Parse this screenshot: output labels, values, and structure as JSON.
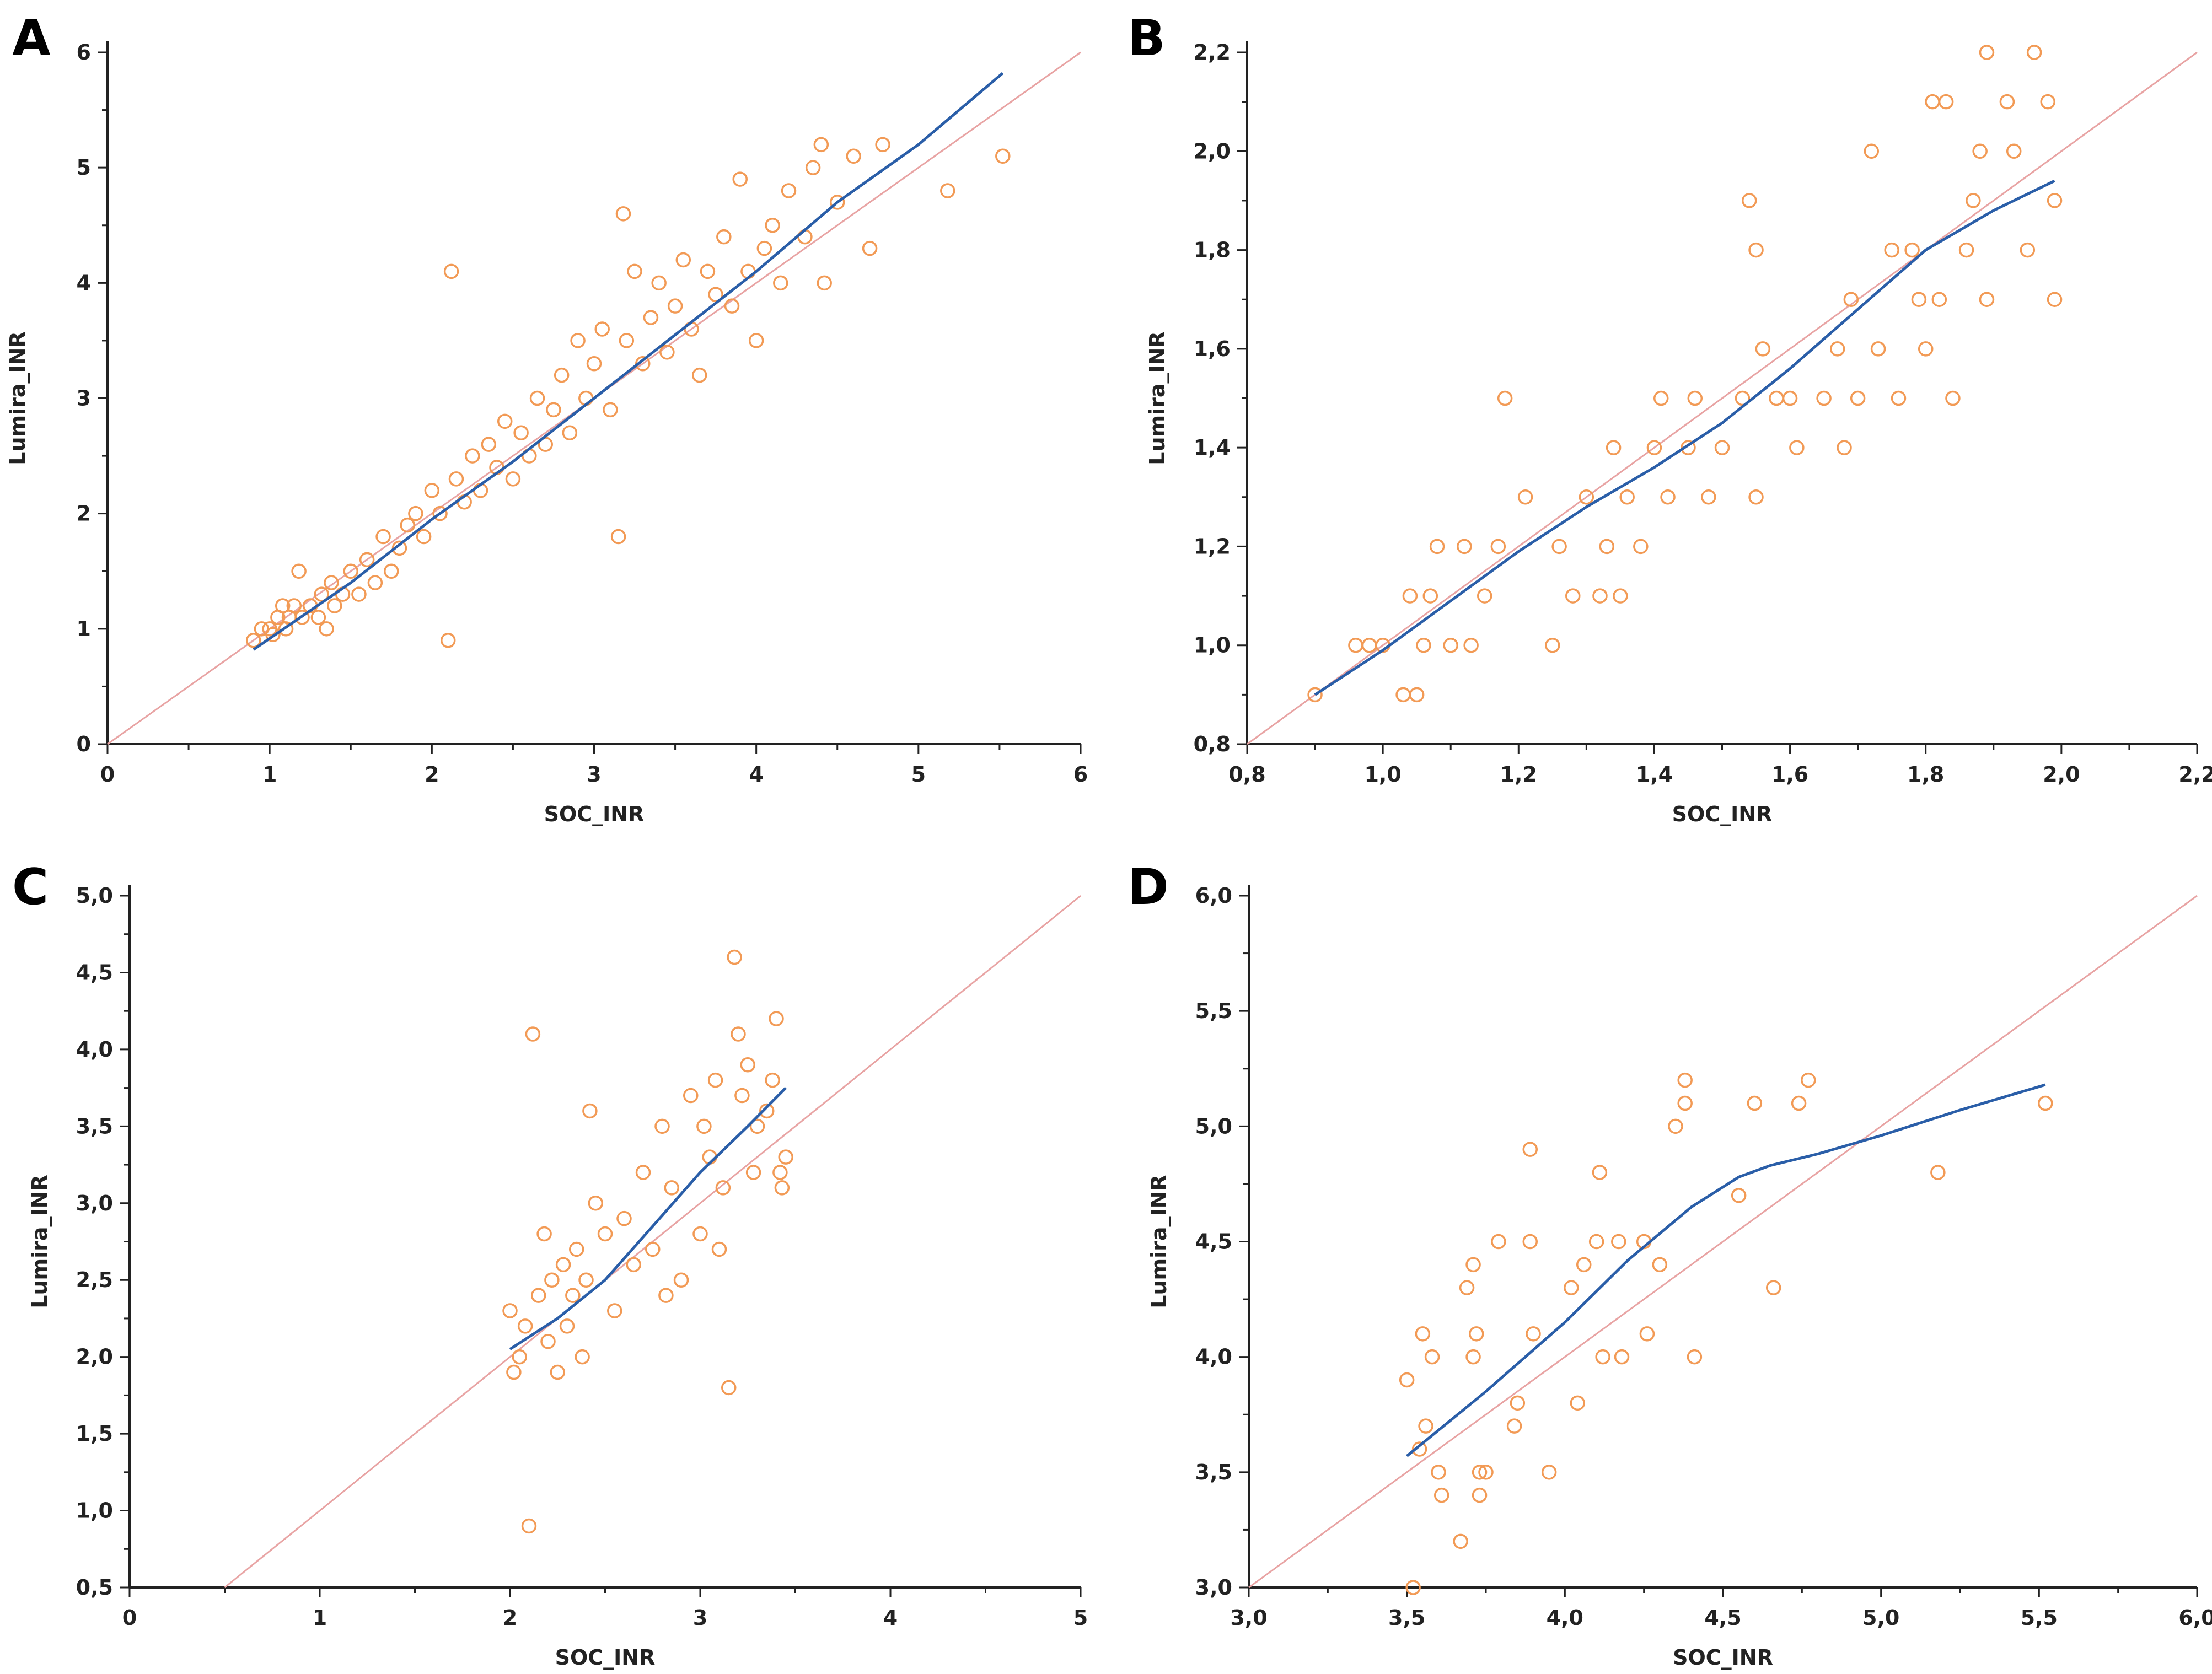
{
  "chart_data": [
    {
      "type": "scatter",
      "panel": "A",
      "xlabel": "SOC_INR",
      "ylabel": "Lumira_INR",
      "xlim": [
        0,
        6
      ],
      "ylim": [
        0,
        6
      ],
      "xticks": [
        "0",
        "1",
        "2",
        "3",
        "4",
        "5",
        "6"
      ],
      "yticks": [
        "0",
        "1",
        "2",
        "3",
        "4",
        "5",
        "6"
      ],
      "identity_line": [
        [
          0,
          0
        ],
        [
          6,
          6
        ]
      ],
      "fit_line": [
        [
          0.9,
          0.82
        ],
        [
          1.5,
          1.4
        ],
        [
          2.0,
          1.95
        ],
        [
          2.5,
          2.45
        ],
        [
          3.0,
          3.0
        ],
        [
          3.5,
          3.55
        ],
        [
          4.0,
          4.1
        ],
        [
          4.5,
          4.7
        ],
        [
          5.0,
          5.2
        ],
        [
          5.52,
          5.82
        ]
      ],
      "points": [
        [
          0.9,
          0.9
        ],
        [
          0.95,
          1.0
        ],
        [
          1.0,
          1.0
        ],
        [
          1.02,
          0.95
        ],
        [
          1.05,
          1.1
        ],
        [
          1.08,
          1.2
        ],
        [
          1.1,
          1.0
        ],
        [
          1.12,
          1.1
        ],
        [
          1.15,
          1.2
        ],
        [
          1.18,
          1.5
        ],
        [
          1.2,
          1.1
        ],
        [
          1.25,
          1.2
        ],
        [
          1.3,
          1.1
        ],
        [
          1.32,
          1.3
        ],
        [
          1.35,
          1.0
        ],
        [
          1.38,
          1.4
        ],
        [
          1.4,
          1.2
        ],
        [
          1.45,
          1.3
        ],
        [
          1.5,
          1.5
        ],
        [
          1.55,
          1.3
        ],
        [
          1.6,
          1.6
        ],
        [
          1.65,
          1.4
        ],
        [
          1.7,
          1.8
        ],
        [
          1.75,
          1.5
        ],
        [
          1.8,
          1.7
        ],
        [
          1.85,
          1.9
        ],
        [
          1.9,
          2.0
        ],
        [
          1.95,
          1.8
        ],
        [
          2.0,
          2.2
        ],
        [
          2.05,
          2.0
        ],
        [
          2.1,
          0.9
        ],
        [
          2.12,
          4.1
        ],
        [
          2.15,
          2.3
        ],
        [
          2.2,
          2.1
        ],
        [
          2.25,
          2.5
        ],
        [
          2.3,
          2.2
        ],
        [
          2.35,
          2.6
        ],
        [
          2.4,
          2.4
        ],
        [
          2.45,
          2.8
        ],
        [
          2.5,
          2.3
        ],
        [
          2.55,
          2.7
        ],
        [
          2.6,
          2.5
        ],
        [
          2.65,
          3.0
        ],
        [
          2.7,
          2.6
        ],
        [
          2.75,
          2.9
        ],
        [
          2.8,
          3.2
        ],
        [
          2.85,
          2.7
        ],
        [
          2.9,
          3.5
        ],
        [
          2.95,
          3.0
        ],
        [
          3.0,
          3.3
        ],
        [
          3.05,
          3.6
        ],
        [
          3.1,
          2.9
        ],
        [
          3.15,
          1.8
        ],
        [
          3.18,
          4.6
        ],
        [
          3.2,
          3.5
        ],
        [
          3.25,
          4.1
        ],
        [
          3.3,
          3.3
        ],
        [
          3.35,
          3.7
        ],
        [
          3.4,
          4.0
        ],
        [
          3.45,
          3.4
        ],
        [
          3.5,
          3.8
        ],
        [
          3.55,
          4.2
        ],
        [
          3.6,
          3.6
        ],
        [
          3.65,
          3.2
        ],
        [
          3.7,
          4.1
        ],
        [
          3.75,
          3.9
        ],
        [
          3.8,
          4.4
        ],
        [
          3.85,
          3.8
        ],
        [
          3.9,
          4.9
        ],
        [
          3.95,
          4.1
        ],
        [
          4.0,
          3.5
        ],
        [
          4.05,
          4.3
        ],
        [
          4.1,
          4.5
        ],
        [
          4.15,
          4.0
        ],
        [
          4.2,
          4.8
        ],
        [
          4.3,
          4.4
        ],
        [
          4.35,
          5.0
        ],
        [
          4.4,
          5.2
        ],
        [
          4.42,
          4.0
        ],
        [
          4.5,
          4.7
        ],
        [
          4.6,
          5.1
        ],
        [
          4.7,
          4.3
        ],
        [
          4.78,
          5.2
        ],
        [
          5.18,
          4.8
        ],
        [
          5.52,
          5.1
        ]
      ]
    },
    {
      "type": "scatter",
      "panel": "B",
      "xlabel": "SOC_INR",
      "ylabel": "Lumira_INR",
      "xlim": [
        0.8,
        2.2
      ],
      "ylim": [
        0.8,
        2.2
      ],
      "xticks": [
        "0,8",
        "1,0",
        "1,2",
        "1,4",
        "1,6",
        "1,8",
        "2,0",
        "2,2"
      ],
      "yticks": [
        "0,8",
        "1,0",
        "1,2",
        "1,4",
        "1,6",
        "1,8",
        "2,0",
        "2,2"
      ],
      "identity_line": [
        [
          0.8,
          0.8
        ],
        [
          2.2,
          2.2
        ]
      ],
      "fit_line": [
        [
          0.9,
          0.9
        ],
        [
          1.0,
          0.99
        ],
        [
          1.1,
          1.09
        ],
        [
          1.2,
          1.19
        ],
        [
          1.3,
          1.28
        ],
        [
          1.4,
          1.36
        ],
        [
          1.5,
          1.45
        ],
        [
          1.6,
          1.56
        ],
        [
          1.7,
          1.68
        ],
        [
          1.8,
          1.8
        ],
        [
          1.9,
          1.88
        ],
        [
          1.99,
          1.94
        ]
      ],
      "points": [
        [
          0.9,
          0.9
        ],
        [
          0.96,
          1.0
        ],
        [
          0.98,
          1.0
        ],
        [
          1.0,
          1.0
        ],
        [
          1.03,
          0.9
        ],
        [
          1.04,
          1.1
        ],
        [
          1.05,
          0.9
        ],
        [
          1.06,
          1.0
        ],
        [
          1.07,
          1.1
        ],
        [
          1.08,
          1.2
        ],
        [
          1.1,
          1.0
        ],
        [
          1.12,
          1.2
        ],
        [
          1.13,
          1.0
        ],
        [
          1.15,
          1.1
        ],
        [
          1.17,
          1.2
        ],
        [
          1.18,
          1.5
        ],
        [
          1.21,
          1.3
        ],
        [
          1.25,
          1.0
        ],
        [
          1.26,
          1.2
        ],
        [
          1.28,
          1.1
        ],
        [
          1.3,
          1.3
        ],
        [
          1.32,
          1.1
        ],
        [
          1.33,
          1.2
        ],
        [
          1.34,
          1.4
        ],
        [
          1.35,
          1.1
        ],
        [
          1.36,
          1.3
        ],
        [
          1.38,
          1.2
        ],
        [
          1.4,
          1.4
        ],
        [
          1.41,
          1.5
        ],
        [
          1.42,
          1.3
        ],
        [
          1.45,
          1.4
        ],
        [
          1.46,
          1.5
        ],
        [
          1.48,
          1.3
        ],
        [
          1.5,
          1.4
        ],
        [
          1.53,
          1.5
        ],
        [
          1.54,
          1.9
        ],
        [
          1.55,
          1.8
        ],
        [
          1.55,
          1.3
        ],
        [
          1.56,
          1.6
        ],
        [
          1.58,
          1.5
        ],
        [
          1.6,
          1.5
        ],
        [
          1.61,
          1.4
        ],
        [
          1.65,
          1.5
        ],
        [
          1.67,
          1.6
        ],
        [
          1.68,
          1.4
        ],
        [
          1.69,
          1.7
        ],
        [
          1.7,
          1.5
        ],
        [
          1.72,
          2.0
        ],
        [
          1.73,
          1.6
        ],
        [
          1.75,
          1.8
        ],
        [
          1.76,
          1.5
        ],
        [
          1.78,
          1.8
        ],
        [
          1.79,
          1.7
        ],
        [
          1.8,
          1.6
        ],
        [
          1.81,
          2.1
        ],
        [
          1.82,
          1.7
        ],
        [
          1.83,
          2.1
        ],
        [
          1.84,
          1.5
        ],
        [
          1.86,
          1.8
        ],
        [
          1.87,
          1.9
        ],
        [
          1.88,
          2.0
        ],
        [
          1.89,
          2.2
        ],
        [
          1.89,
          1.7
        ],
        [
          1.92,
          2.1
        ],
        [
          1.93,
          2.0
        ],
        [
          1.95,
          1.8
        ],
        [
          1.96,
          2.2
        ],
        [
          1.98,
          2.1
        ],
        [
          1.99,
          1.9
        ],
        [
          1.99,
          1.7
        ]
      ]
    },
    {
      "type": "scatter",
      "panel": "C",
      "xlabel": "SOC_INR",
      "ylabel": "Lumira_INR",
      "xlim": [
        0,
        5
      ],
      "ylim": [
        0.5,
        5.0
      ],
      "xticks": [
        "0",
        "1",
        "2",
        "3",
        "4",
        "5"
      ],
      "yticks": [
        "0,5",
        "1,0",
        "1,5",
        "2,0",
        "2,5",
        "3,0",
        "3,5",
        "4,0",
        "4,5",
        "5,0"
      ],
      "identity_line": [
        [
          0.5,
          0.5
        ],
        [
          5.0,
          5.0
        ]
      ],
      "fit_line": [
        [
          2.0,
          2.05
        ],
        [
          2.25,
          2.25
        ],
        [
          2.5,
          2.5
        ],
        [
          2.75,
          2.85
        ],
        [
          3.0,
          3.2
        ],
        [
          3.25,
          3.5
        ],
        [
          3.45,
          3.75
        ]
      ],
      "points": [
        [
          2.0,
          2.3
        ],
        [
          2.02,
          1.9
        ],
        [
          2.05,
          2.0
        ],
        [
          2.08,
          2.2
        ],
        [
          2.1,
          0.9
        ],
        [
          2.12,
          4.1
        ],
        [
          2.15,
          2.4
        ],
        [
          2.18,
          2.8
        ],
        [
          2.2,
          2.1
        ],
        [
          2.22,
          2.5
        ],
        [
          2.25,
          1.9
        ],
        [
          2.28,
          2.6
        ],
        [
          2.3,
          2.2
        ],
        [
          2.33,
          2.4
        ],
        [
          2.35,
          2.7
        ],
        [
          2.38,
          2.0
        ],
        [
          2.4,
          2.5
        ],
        [
          2.42,
          3.6
        ],
        [
          2.45,
          3.0
        ],
        [
          2.5,
          2.8
        ],
        [
          2.55,
          2.3
        ],
        [
          2.6,
          2.9
        ],
        [
          2.65,
          2.6
        ],
        [
          2.7,
          3.2
        ],
        [
          2.75,
          2.7
        ],
        [
          2.8,
          3.5
        ],
        [
          2.82,
          2.4
        ],
        [
          2.85,
          3.1
        ],
        [
          2.9,
          2.5
        ],
        [
          2.95,
          3.7
        ],
        [
          3.0,
          2.8
        ],
        [
          3.02,
          3.5
        ],
        [
          3.05,
          3.3
        ],
        [
          3.08,
          3.8
        ],
        [
          3.1,
          2.7
        ],
        [
          3.12,
          3.1
        ],
        [
          3.15,
          1.8
        ],
        [
          3.18,
          4.6
        ],
        [
          3.2,
          4.1
        ],
        [
          3.22,
          3.7
        ],
        [
          3.25,
          3.9
        ],
        [
          3.28,
          3.2
        ],
        [
          3.3,
          3.5
        ],
        [
          3.35,
          3.6
        ],
        [
          3.38,
          3.8
        ],
        [
          3.4,
          4.2
        ],
        [
          3.42,
          3.2
        ],
        [
          3.43,
          3.1
        ],
        [
          3.45,
          3.3
        ]
      ]
    },
    {
      "type": "scatter",
      "panel": "D",
      "xlabel": "SOC_INR",
      "ylabel": "Lumira_INR",
      "xlim": [
        3.0,
        6.0
      ],
      "ylim": [
        3.0,
        6.0
      ],
      "xticks": [
        "3,0",
        "3,5",
        "4,0",
        "4,5",
        "5,0",
        "5,5",
        "6,0"
      ],
      "yticks": [
        "3,0",
        "3,5",
        "4,0",
        "4,5",
        "5,0",
        "5,5",
        "6,0"
      ],
      "identity_line": [
        [
          3.0,
          3.0
        ],
        [
          6.0,
          6.0
        ]
      ],
      "fit_line": [
        [
          3.5,
          3.57
        ],
        [
          3.75,
          3.85
        ],
        [
          4.0,
          4.15
        ],
        [
          4.2,
          4.42
        ],
        [
          4.4,
          4.65
        ],
        [
          4.55,
          4.78
        ],
        [
          4.65,
          4.83
        ],
        [
          4.8,
          4.88
        ],
        [
          5.0,
          4.96
        ],
        [
          5.25,
          5.07
        ],
        [
          5.52,
          5.18
        ]
      ],
      "points": [
        [
          3.5,
          3.9
        ],
        [
          3.52,
          3.0
        ],
        [
          3.54,
          3.6
        ],
        [
          3.55,
          4.1
        ],
        [
          3.56,
          3.7
        ],
        [
          3.58,
          4.0
        ],
        [
          3.6,
          3.5
        ],
        [
          3.61,
          3.4
        ],
        [
          3.67,
          3.2
        ],
        [
          3.69,
          4.3
        ],
        [
          3.71,
          4.4
        ],
        [
          3.71,
          4.0
        ],
        [
          3.72,
          4.1
        ],
        [
          3.73,
          3.5
        ],
        [
          3.73,
          3.4
        ],
        [
          3.75,
          3.5
        ],
        [
          3.79,
          4.5
        ],
        [
          3.84,
          3.7
        ],
        [
          3.85,
          3.8
        ],
        [
          3.89,
          4.9
        ],
        [
          3.89,
          4.5
        ],
        [
          3.9,
          4.1
        ],
        [
          3.95,
          3.5
        ],
        [
          4.02,
          4.3
        ],
        [
          4.04,
          3.8
        ],
        [
          4.06,
          4.4
        ],
        [
          4.1,
          4.5
        ],
        [
          4.11,
          4.8
        ],
        [
          4.12,
          4.0
        ],
        [
          4.17,
          4.5
        ],
        [
          4.18,
          4.0
        ],
        [
          4.25,
          4.5
        ],
        [
          4.26,
          4.1
        ],
        [
          4.3,
          4.4
        ],
        [
          4.35,
          5.0
        ],
        [
          4.38,
          5.2
        ],
        [
          4.38,
          5.1
        ],
        [
          4.41,
          4.0
        ],
        [
          4.55,
          4.7
        ],
        [
          4.6,
          5.1
        ],
        [
          4.66,
          4.3
        ],
        [
          4.74,
          5.1
        ],
        [
          4.77,
          5.2
        ],
        [
          5.18,
          4.8
        ],
        [
          5.52,
          5.1
        ]
      ]
    }
  ]
}
